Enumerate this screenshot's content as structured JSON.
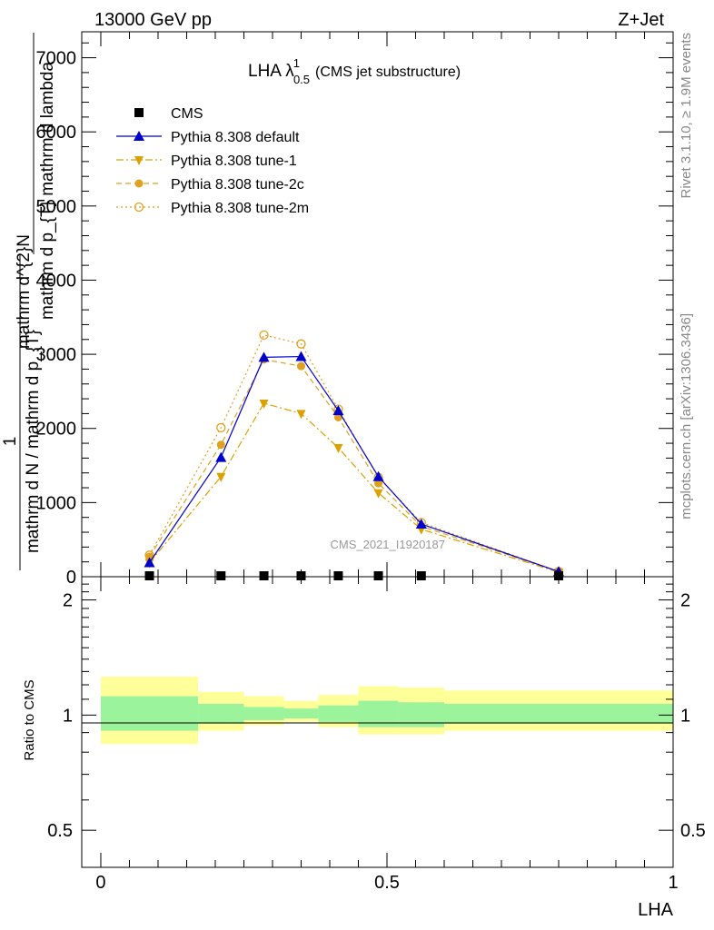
{
  "header": {
    "left_title": "13000 GeV pp",
    "right_title": "Z+Jet"
  },
  "side_labels": {
    "rivet": "Rivet 3.1.10, ≥ 1.9M events",
    "mcplots": "mcplots.cern.ch [arXiv:1306.3436]"
  },
  "chart_data": [
    {
      "type": "line",
      "title": "LHA λ",
      "title_sup": "1",
      "title_sub": "0.5",
      "title_suffix": "(CMS jet substructure)",
      "watermark": "CMS_2021_I1920187",
      "ylabel_parts": [
        "mathrm d^{2}N",
        "mathrm d p_{T} mathrm d lambda",
        "1",
        "mathrm d N / mathrm d p_{T}"
      ],
      "yticks": [
        "0",
        "1000",
        "2000",
        "3000",
        "4000",
        "5000",
        "6000",
        "7000"
      ],
      "xlim": [
        -0.0333,
        1.0
      ],
      "ylim": [
        0,
        7350
      ],
      "x_edges": [
        0.0,
        0.17,
        0.25,
        0.32,
        0.38,
        0.45,
        0.52,
        0.6,
        1.0
      ],
      "series": [
        {
          "name": "CMS",
          "marker": "square",
          "color": "#000000",
          "x": [
            0.085,
            0.21,
            0.285,
            0.35,
            0.415,
            0.485,
            0.56,
            0.8
          ],
          "values": [
            0,
            0,
            0,
            0,
            0,
            0,
            0,
            0
          ]
        },
        {
          "name": "Pythia 8.308 default",
          "marker": "triangle-up",
          "color": "#0000cc",
          "dash": "",
          "x": [
            0.085,
            0.21,
            0.285,
            0.35,
            0.415,
            0.485,
            0.56,
            0.8
          ],
          "values": [
            190,
            1610,
            2960,
            2970,
            2240,
            1350,
            710,
            70
          ]
        },
        {
          "name": "Pythia 8.308 tune-1",
          "marker": "triangle-down",
          "color": "#dca000",
          "dash": "8,3,2,3",
          "x": [
            0.085,
            0.21,
            0.285,
            0.35,
            0.415,
            0.485,
            0.56,
            0.8
          ],
          "values": [
            190,
            1350,
            2340,
            2200,
            1740,
            1130,
            640,
            60
          ]
        },
        {
          "name": "Pythia 8.308 tune-2c",
          "marker": "circle",
          "color": "#e0a020",
          "dash": "6,4",
          "x": [
            0.085,
            0.21,
            0.285,
            0.35,
            0.415,
            0.485,
            0.56,
            0.8
          ],
          "values": [
            270,
            1780,
            2930,
            2840,
            2150,
            1260,
            680,
            70
          ]
        },
        {
          "name": "Pythia 8.308 tune-2m",
          "marker": "circle-open",
          "color": "#e0a020",
          "dash": "2,3",
          "x": [
            0.085,
            0.21,
            0.285,
            0.35,
            0.415,
            0.485,
            0.56,
            0.8
          ],
          "values": [
            290,
            2010,
            3260,
            3140,
            2260,
            1340,
            730,
            70
          ]
        }
      ]
    },
    {
      "type": "area",
      "ylabel": "Ratio to CMS",
      "xlabel": "LHA",
      "xticks": [
        "0",
        "0.5",
        "1"
      ],
      "yticks": [
        "0.5",
        "1",
        "2"
      ],
      "ytick_values": [
        0.5,
        1,
        2
      ],
      "ylim": [
        0.4,
        2.3
      ],
      "x_edges": [
        0.0,
        0.17,
        0.25,
        0.32,
        0.38,
        0.45,
        0.52,
        0.6,
        1.0
      ],
      "band_inner": [
        [
          0.91,
          1.12
        ],
        [
          0.95,
          1.07
        ],
        [
          0.97,
          1.05
        ],
        [
          0.98,
          1.04
        ],
        [
          0.96,
          1.06
        ],
        [
          0.93,
          1.09
        ],
        [
          0.93,
          1.08
        ],
        [
          0.95,
          1.07
        ]
      ],
      "band_outer": [
        [
          0.84,
          1.26
        ],
        [
          0.91,
          1.15
        ],
        [
          0.94,
          1.12
        ],
        [
          0.96,
          1.09
        ],
        [
          0.93,
          1.13
        ],
        [
          0.89,
          1.19
        ],
        [
          0.89,
          1.18
        ],
        [
          0.91,
          1.16
        ]
      ],
      "colors": {
        "inner": "#9bf39b",
        "outer": "#ffff99"
      }
    }
  ]
}
